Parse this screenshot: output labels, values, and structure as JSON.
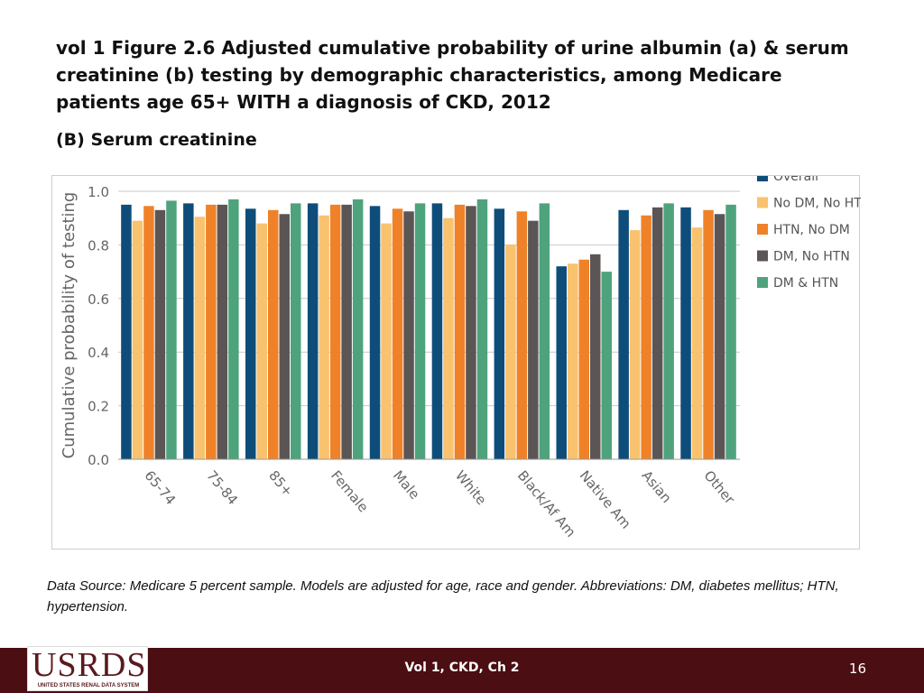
{
  "slide": {
    "title": "vol 1 Figure 2.6 Adjusted cumulative probability of urine albumin (a) & serum creatinine (b) testing by demographic characteristics, among Medicare patients age 65+ WITH a diagnosis of CKD, 2012",
    "subtitle": "(B) Serum creatinine",
    "footnote": "Data Source: Medicare 5 percent sample. Models are adjusted for age, race and gender. Abbreviations: DM, diabetes mellitus; HTN, hypertension.",
    "footer_center": "Vol 1, CKD, Ch 2",
    "page_number": "16",
    "logo_text": "USRDS",
    "logo_subtext": "UNITED STATES RENAL DATA SYSTEM"
  },
  "colors": {
    "Overall": "#0e4d7a",
    "No DM, No HTN": "#f9c26e",
    "HTN, No DM": "#ef8228",
    "DM, No HTN": "#5b5655",
    "DM & HTN": "#4ea37c",
    "footer": "#4b0e12"
  },
  "chart_data": {
    "type": "bar",
    "title": "",
    "xlabel": "",
    "ylabel": "Cumulative probability of testing",
    "ylim": [
      0,
      1.0
    ],
    "yticks": [
      "0.0",
      "0.2",
      "0.4",
      "0.6",
      "0.8",
      "1.0"
    ],
    "grid": true,
    "legend_position": "right",
    "categories": [
      "65-74",
      "75-84",
      "85+",
      "Female",
      "Male",
      "White",
      "Black/Af Am",
      "Native Am",
      "Asian",
      "Other"
    ],
    "series": [
      {
        "name": "Overall",
        "values": [
          0.95,
          0.955,
          0.935,
          0.955,
          0.945,
          0.955,
          0.935,
          0.72,
          0.93,
          0.94
        ]
      },
      {
        "name": "No DM, No HTN",
        "values": [
          0.89,
          0.905,
          0.88,
          0.91,
          0.88,
          0.9,
          0.8,
          0.73,
          0.855,
          0.865
        ]
      },
      {
        "name": "HTN, No DM",
        "values": [
          0.945,
          0.95,
          0.93,
          0.95,
          0.935,
          0.95,
          0.925,
          0.745,
          0.91,
          0.93
        ]
      },
      {
        "name": "DM, No HTN",
        "values": [
          0.93,
          0.95,
          0.915,
          0.95,
          0.925,
          0.945,
          0.89,
          0.765,
          0.94,
          0.915
        ]
      },
      {
        "name": "DM & HTN",
        "values": [
          0.965,
          0.97,
          0.955,
          0.97,
          0.955,
          0.97,
          0.955,
          0.7,
          0.955,
          0.95
        ]
      }
    ]
  }
}
